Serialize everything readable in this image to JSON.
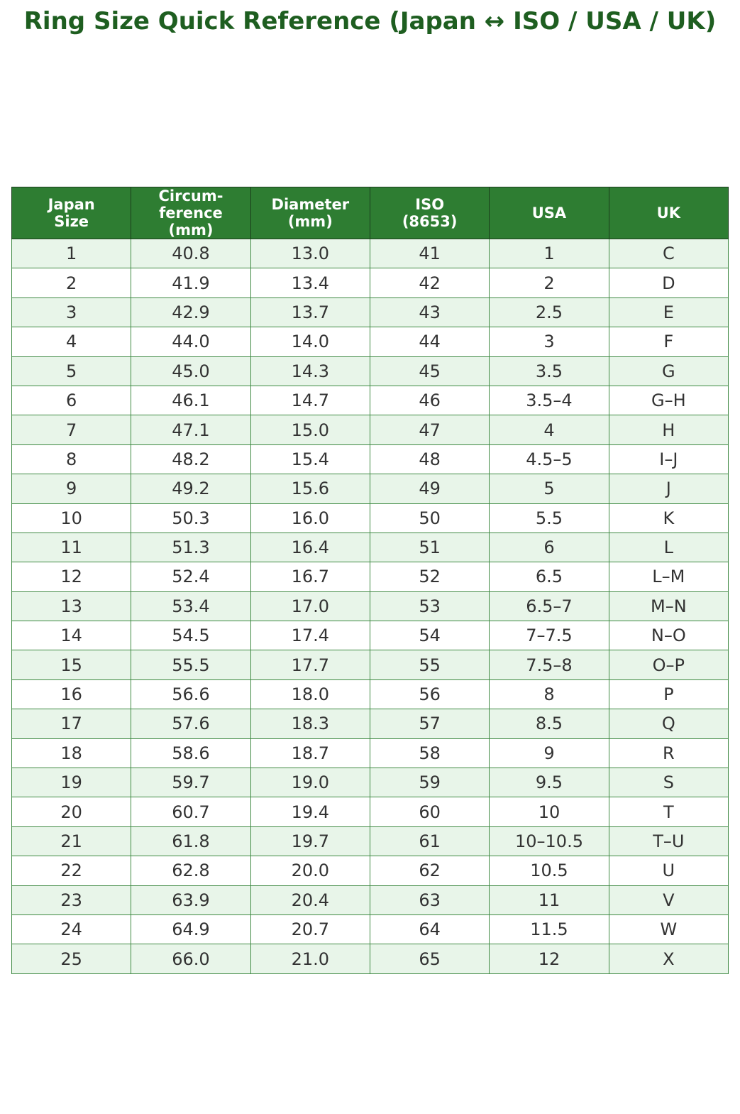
{
  "title": "Ring Size Quick Reference (Japan ↔ ISO / USA / UK)",
  "table": {
    "header": [
      "Japan\nSize",
      "Circum-\nference\n(mm)",
      "Diameter\n(mm)",
      "ISO\n(8653)",
      "USA",
      "UK"
    ],
    "rows": [
      [
        "1",
        "40.8",
        "13.0",
        "41",
        "1",
        "C"
      ],
      [
        "2",
        "41.9",
        "13.4",
        "42",
        "2",
        "D"
      ],
      [
        "3",
        "42.9",
        "13.7",
        "43",
        "2.5",
        "E"
      ],
      [
        "4",
        "44.0",
        "14.0",
        "44",
        "3",
        "F"
      ],
      [
        "5",
        "45.0",
        "14.3",
        "45",
        "3.5",
        "G"
      ],
      [
        "6",
        "46.1",
        "14.7",
        "46",
        "3.5–4",
        "G–H"
      ],
      [
        "7",
        "47.1",
        "15.0",
        "47",
        "4",
        "H"
      ],
      [
        "8",
        "48.2",
        "15.4",
        "48",
        "4.5–5",
        "I–J"
      ],
      [
        "9",
        "49.2",
        "15.6",
        "49",
        "5",
        "J"
      ],
      [
        "10",
        "50.3",
        "16.0",
        "50",
        "5.5",
        "K"
      ],
      [
        "11",
        "51.3",
        "16.4",
        "51",
        "6",
        "L"
      ],
      [
        "12",
        "52.4",
        "16.7",
        "52",
        "6.5",
        "L–M"
      ],
      [
        "13",
        "53.4",
        "17.0",
        "53",
        "6.5–7",
        "M–N"
      ],
      [
        "14",
        "54.5",
        "17.4",
        "54",
        "7–7.5",
        "N–O"
      ],
      [
        "15",
        "55.5",
        "17.7",
        "55",
        "7.5–8",
        "O–P"
      ],
      [
        "16",
        "56.6",
        "18.0",
        "56",
        "8",
        "P"
      ],
      [
        "17",
        "57.6",
        "18.3",
        "57",
        "8.5",
        "Q"
      ],
      [
        "18",
        "58.6",
        "18.7",
        "58",
        "9",
        "R"
      ],
      [
        "19",
        "59.7",
        "19.0",
        "59",
        "9.5",
        "S"
      ],
      [
        "20",
        "60.7",
        "19.4",
        "60",
        "10",
        "T"
      ],
      [
        "21",
        "61.8",
        "19.7",
        "61",
        "10–10.5",
        "T–U"
      ],
      [
        "22",
        "62.8",
        "20.0",
        "62",
        "10.5",
        "U"
      ],
      [
        "23",
        "63.9",
        "20.4",
        "63",
        "11",
        "V"
      ],
      [
        "24",
        "64.9",
        "20.7",
        "64",
        "11.5",
        "W"
      ],
      [
        "25",
        "66.0",
        "21.0",
        "65",
        "12",
        "X"
      ]
    ]
  }
}
